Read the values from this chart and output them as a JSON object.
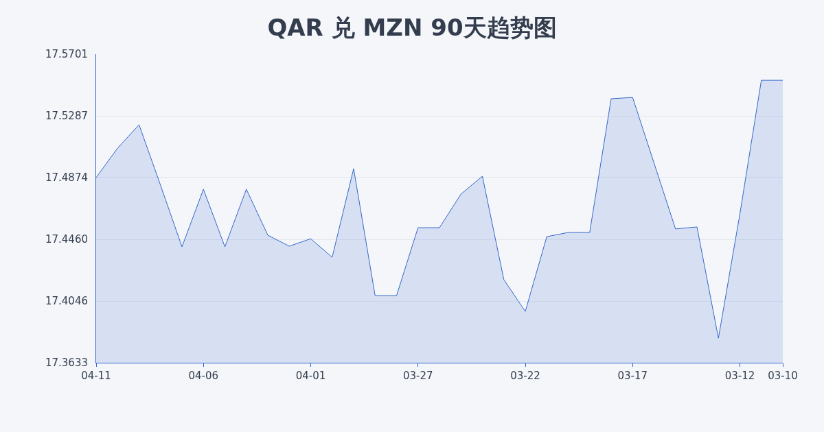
{
  "chart_data": {
    "type": "area",
    "title": "QAR 兑 MZN 90天趋势图",
    "x": [
      "--04-11",
      "--04-10",
      "--04-09",
      "--04-08",
      "--04-07",
      "--04-06",
      "--04-05",
      "--04-04",
      "--04-03",
      "--04-02",
      "--04-01",
      "--03-31",
      "--03-30",
      "--03-29",
      "--03-28",
      "--03-27",
      "--03-26",
      "--03-25",
      "--03-24",
      "--03-23",
      "--03-22",
      "--03-21",
      "--03-20",
      "--03-19",
      "--03-18",
      "--03-17",
      "--03-16",
      "--03-15",
      "--03-14",
      "--03-13",
      "--03-12",
      "--03-11",
      "--03-10"
    ],
    "series": [
      {
        "color": "#3366cc",
        "values": [
          17.4874,
          17.5071,
          17.5228,
          17.4823,
          17.441,
          17.4796,
          17.441,
          17.4796,
          17.4488,
          17.4414,
          17.4464,
          17.434,
          17.4934,
          17.4083,
          17.4083,
          17.4538,
          17.4538,
          17.4763,
          17.4883,
          17.419,
          17.3977,
          17.4478,
          17.4506,
          17.4506,
          17.5402,
          17.5411,
          17.4971,
          17.453,
          17.4543,
          17.3798,
          17.463,
          17.5526,
          17.5526
        ]
      }
    ],
    "xlim": [
      "--04-11",
      "--03-10"
    ],
    "xticks": [
      {
        "value": "--04-11",
        "label": "04-11"
      },
      {
        "value": "--04-06",
        "label": "04-06"
      },
      {
        "value": "--04-01",
        "label": "04-01"
      },
      {
        "value": "--03-27",
        "label": "03-27"
      },
      {
        "value": "--03-22",
        "label": "03-22"
      },
      {
        "value": "--03-17",
        "label": "03-17"
      },
      {
        "value": "--03-12",
        "label": "03-12"
      },
      {
        "value": "--03-10",
        "label": "03-10"
      }
    ],
    "ylim": [
      17.3633,
      17.5701
    ],
    "yticks": [
      17.3633,
      17.4046,
      {
        "value": 17.446,
        "label": "17.4460"
      },
      17.4874,
      17.5287,
      17.5701
    ],
    "grid": "y",
    "marker": "none",
    "line_style": "solid"
  }
}
